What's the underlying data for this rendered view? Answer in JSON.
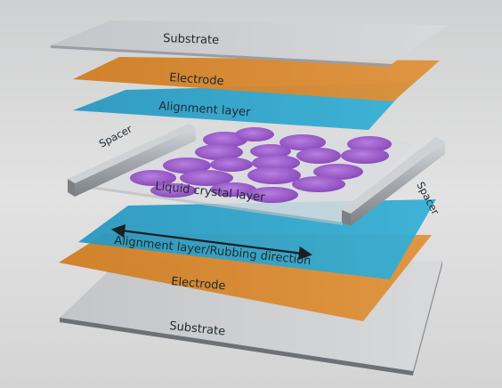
{
  "layers": {
    "top_substrate": "Substrate",
    "top_electrode": "Electrode",
    "top_alignment": "Alignment layer",
    "liquid_crystal": "Liquid crystal layer",
    "bottom_alignment": "Alignment layer/Rubbing direction",
    "bottom_electrode": "Electrode",
    "bottom_substrate": "Substrate"
  },
  "spacers": {
    "left": "Spacer",
    "right": "Spacer"
  },
  "colors": {
    "background": "#dcdcdc",
    "substrate": "#c9cbce",
    "electrode": "#d9892f",
    "alignment": "#2ea6cc",
    "lc_layer": "#d8dadd",
    "molecule": "#9b5cc9",
    "spacer": "#a9adb2"
  }
}
